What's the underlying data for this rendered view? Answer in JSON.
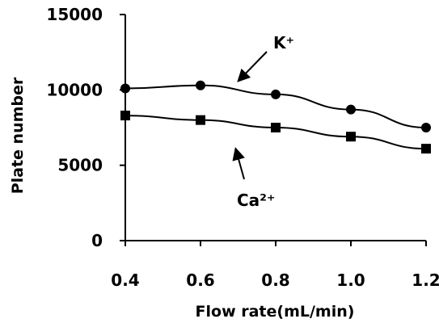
{
  "chart_data": {
    "type": "line",
    "xlabel": "Flow rate(mL/min)",
    "ylabel": "Plate number",
    "xlim": [
      0.4,
      1.2
    ],
    "ylim": [
      0,
      15000
    ],
    "x_ticks": [
      "0.4",
      "0.6",
      "0.8",
      "1.0",
      "1.2"
    ],
    "y_ticks": [
      "0",
      "5000",
      "10000",
      "15000"
    ],
    "grid": false,
    "x": [
      0.4,
      0.6,
      0.8,
      1.0,
      1.2
    ],
    "series": [
      {
        "name": "K⁺",
        "values": [
          10100,
          10300,
          9700,
          8700,
          7500
        ],
        "marker": "circle",
        "color": "#000000"
      },
      {
        "name": "Ca²⁺",
        "values": [
          8300,
          8000,
          7500,
          6900,
          6100
        ],
        "marker": "square",
        "color": "#000000"
      }
    ],
    "annotations": [
      {
        "text": "K⁺",
        "series": "K⁺"
      },
      {
        "text": "Ca²⁺",
        "series": "Ca²⁺"
      }
    ]
  }
}
